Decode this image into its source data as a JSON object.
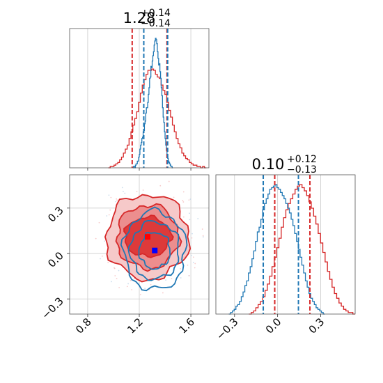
{
  "colors": {
    "blue": "#1f77b4",
    "red": "#d62728",
    "marker_blue": "#0000ff",
    "marker_red": "#ff0000"
  },
  "chart_data": [
    {
      "type": "histogram",
      "panel": "top-left",
      "title": {
        "main": "1.28",
        "sup": "+0.14",
        "sub": "−0.14"
      },
      "xlim": [
        0.66,
        1.74
      ],
      "grid": true,
      "dashed_lines": {
        "blue": [
          1.235,
          1.42
        ],
        "red": [
          1.145,
          1.415
        ]
      },
      "series": [
        {
          "color": "blue",
          "bin_edges_range": [
            1.15,
            1.46
          ],
          "counts": [
            0,
            1,
            1,
            0,
            2,
            3,
            3,
            5,
            5,
            8,
            10,
            14,
            17,
            19,
            22,
            23,
            27,
            28,
            33,
            35,
            41,
            45,
            45,
            49,
            55,
            60,
            67,
            68,
            76,
            75,
            80,
            84,
            87,
            92,
            95,
            97,
            96,
            93,
            87,
            82,
            77,
            78,
            72,
            67,
            60,
            54,
            45,
            38,
            34,
            27,
            22,
            17,
            13,
            10,
            7,
            5,
            4,
            3,
            2,
            1,
            1,
            0
          ]
        },
        {
          "color": "red",
          "bin_edges_range": [
            0.96,
            1.72
          ],
          "counts": [
            0,
            1,
            1,
            2,
            3,
            4,
            6,
            8,
            11,
            14,
            17,
            22,
            27,
            32,
            37,
            42,
            49,
            56,
            62,
            66,
            70,
            73,
            73,
            74,
            73,
            70,
            68,
            67,
            62,
            58,
            55,
            49,
            43,
            38,
            32,
            27,
            22,
            18,
            15,
            11,
            9,
            7,
            6,
            4,
            3,
            2,
            2,
            1,
            1,
            0,
            1,
            0
          ]
        }
      ]
    },
    {
      "type": "contour",
      "panel": "bottom-left",
      "xlim": [
        0.66,
        1.74
      ],
      "ylim": [
        -0.4,
        0.52
      ],
      "xticks": [
        "0.8",
        "1.2",
        "1.6"
      ],
      "yticks": [
        "−0.3",
        "0.0",
        "0.3"
      ],
      "grid": true,
      "red_contours": {
        "center": [
          1.265,
          0.11
        ],
        "levels": [
          [
            0.18,
            0.13
          ],
          [
            0.24,
            0.21
          ],
          [
            0.32,
            0.28
          ]
        ]
      },
      "blue_contours": {
        "center": [
          1.32,
          0.02
        ],
        "levels": [
          [
            0.12,
            0.12
          ],
          [
            0.19,
            0.19
          ],
          [
            0.24,
            0.26
          ]
        ]
      },
      "markers": [
        {
          "color": "marker_red",
          "x": 1.265,
          "y": 0.11
        },
        {
          "color": "marker_blue",
          "x": 1.32,
          "y": 0.02
        }
      ]
    },
    {
      "type": "histogram",
      "panel": "bottom-right",
      "title": {
        "main": "0.10",
        "sup": "+0.12",
        "sub": "−0.13"
      },
      "xlim": [
        -0.43,
        0.54
      ],
      "xticks": [
        "−0.3",
        "0.0",
        "0.3"
      ],
      "grid": true,
      "dashed_lines": {
        "blue": [
          -0.1,
          0.145
        ],
        "red": [
          -0.02,
          0.225
        ]
      },
      "series": [
        {
          "color": "blue",
          "bin_edges_range": [
            -0.34,
            0.33
          ],
          "counts": [
            0,
            1,
            2,
            3,
            5,
            6,
            8,
            11,
            14,
            18,
            21,
            26,
            30,
            35,
            40,
            46,
            52,
            55,
            60,
            66,
            70,
            73,
            76,
            79,
            80,
            81,
            82,
            80,
            79,
            77,
            75,
            73,
            70,
            67,
            64,
            60,
            56,
            51,
            46,
            41,
            36,
            31,
            26,
            21,
            17,
            13,
            10,
            8,
            6,
            4,
            3,
            2,
            1,
            0
          ]
        },
        {
          "color": "red",
          "bin_edges_range": [
            -0.2,
            0.54
          ],
          "counts": [
            0,
            1,
            2,
            4,
            6,
            8,
            11,
            15,
            19,
            24,
            30,
            36,
            42,
            48,
            55,
            61,
            66,
            70,
            73,
            76,
            79,
            81,
            82,
            80,
            78,
            75,
            71,
            67,
            62,
            57,
            51,
            45,
            39,
            33,
            27,
            22,
            17,
            13,
            10,
            7,
            5,
            3,
            2,
            1,
            1,
            0
          ]
        }
      ]
    }
  ]
}
